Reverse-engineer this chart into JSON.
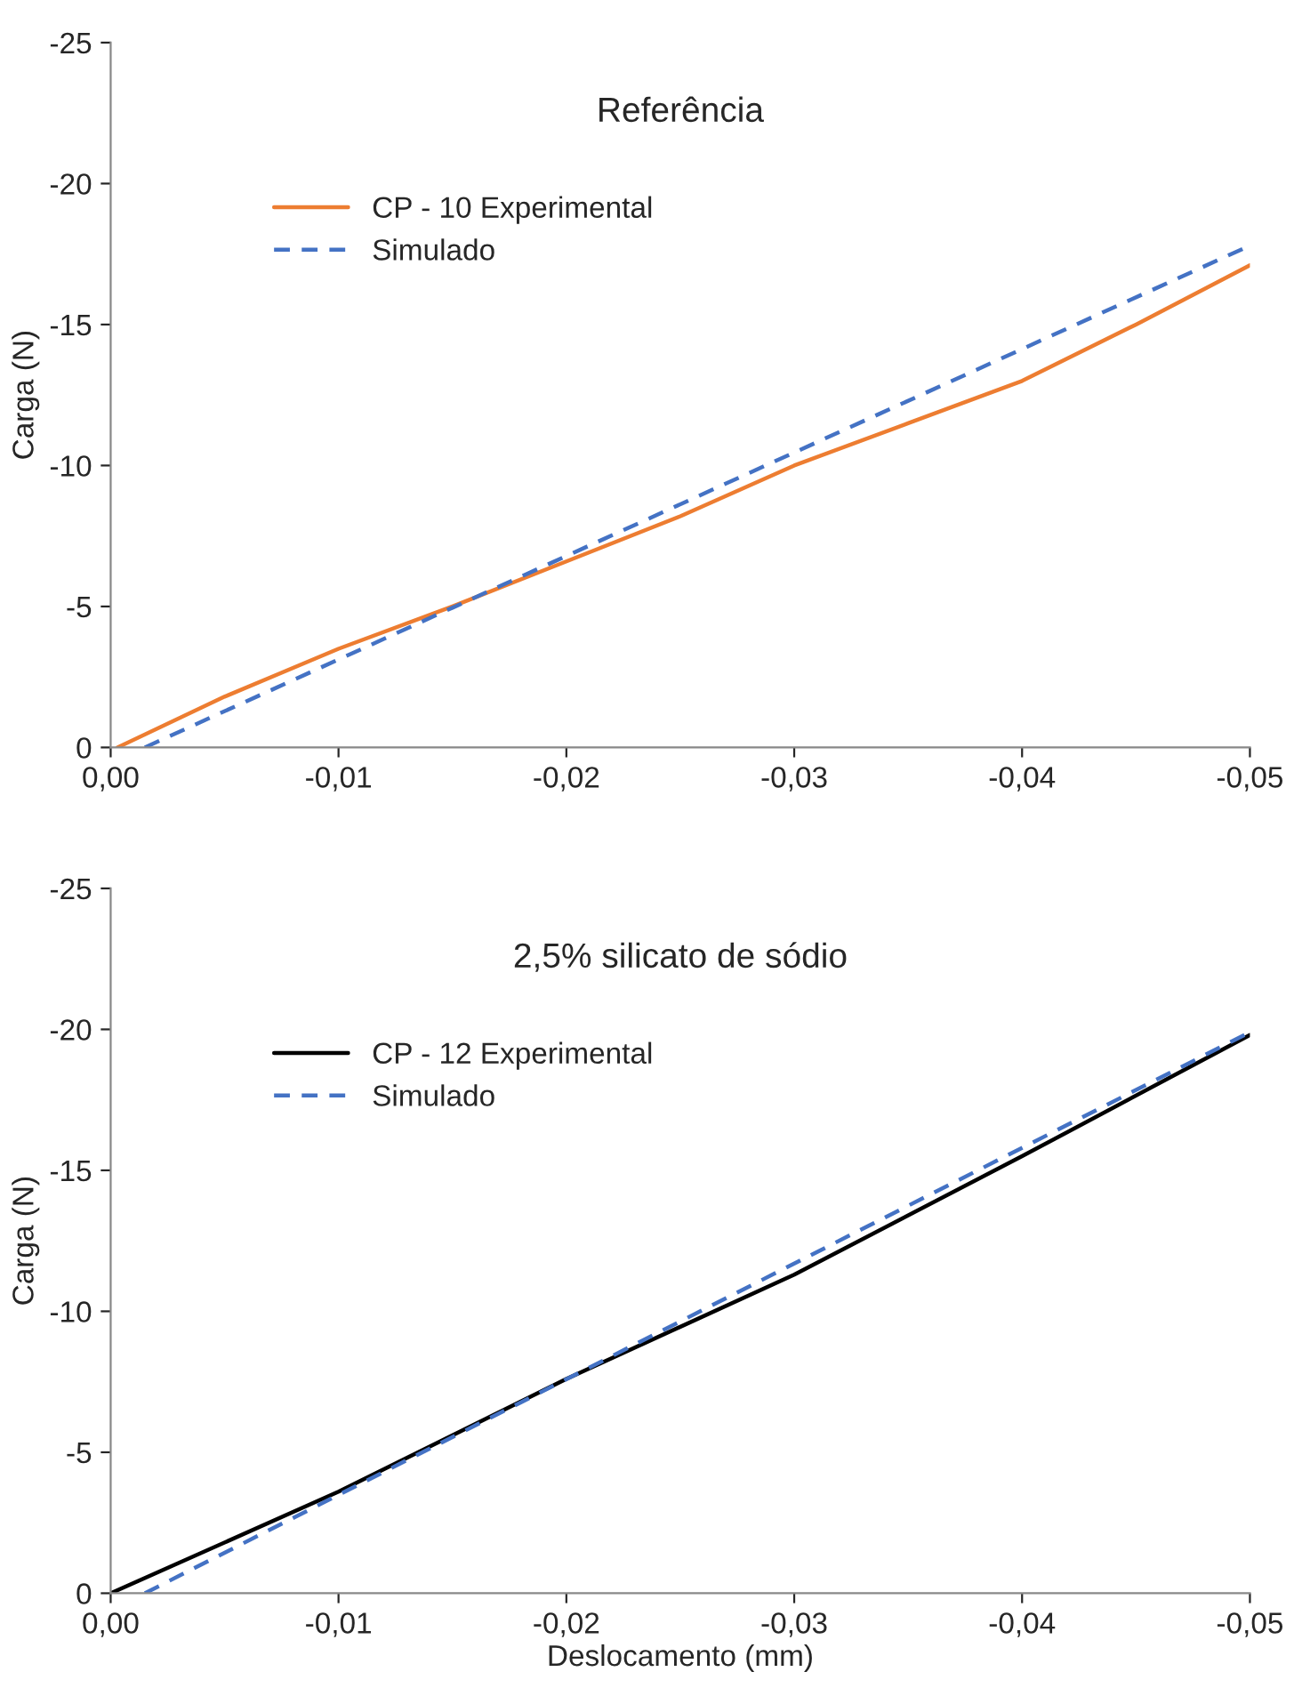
{
  "chart_data": [
    {
      "type": "line",
      "title": "Referência",
      "ylabel": "Carga (N)",
      "xlim": [
        0,
        -0.05
      ],
      "ylim": [
        0,
        -25
      ],
      "xticks": [
        {
          "value": 0,
          "label": "0,00"
        },
        {
          "value": -0.01,
          "label": "-0,01"
        },
        {
          "value": -0.02,
          "label": "-0,02"
        },
        {
          "value": -0.03,
          "label": "-0,03"
        },
        {
          "value": -0.04,
          "label": "-0,04"
        },
        {
          "value": -0.05,
          "label": "-0,05"
        }
      ],
      "yticks": [
        0,
        -5,
        -10,
        -15,
        -20,
        -25
      ],
      "grid": false,
      "legend": "top left",
      "series": [
        {
          "name": "CP - 10 Experimental",
          "color": "#ed7d31",
          "line_style": "solid",
          "x": [
            -0.0003,
            -0.005,
            -0.01,
            -0.015,
            -0.02,
            -0.025,
            -0.03,
            -0.035,
            -0.04,
            -0.045,
            -0.05
          ],
          "values": [
            0,
            -1.8,
            -3.5,
            -5.0,
            -6.6,
            -8.2,
            -10.0,
            -11.5,
            -13.0,
            -15.0,
            -17.1
          ]
        },
        {
          "name": "Simulado",
          "color": "#4472c4",
          "line_style": "dashed",
          "x": [
            -0.0015,
            -0.05
          ],
          "values": [
            0,
            -17.8
          ]
        }
      ]
    },
    {
      "type": "line",
      "title": "2,5% silicato de sódio",
      "xlabel": "Deslocamento (mm)",
      "ylabel": "Carga (N)",
      "xlim": [
        0,
        -0.05
      ],
      "ylim": [
        0,
        -25
      ],
      "xticks": [
        {
          "value": 0,
          "label": "0,00"
        },
        {
          "value": -0.01,
          "label": "-0,01"
        },
        {
          "value": -0.02,
          "label": "-0,02"
        },
        {
          "value": -0.03,
          "label": "-0,03"
        },
        {
          "value": -0.04,
          "label": "-0,04"
        },
        {
          "value": -0.05,
          "label": "-0,05"
        }
      ],
      "yticks": [
        0,
        -5,
        -10,
        -15,
        -20,
        -25
      ],
      "grid": false,
      "legend": "top left",
      "series": [
        {
          "name": "CP - 12 Experimental",
          "color": "#000000",
          "line_style": "solid",
          "x": [
            0,
            -0.01,
            -0.02,
            -0.03,
            -0.04,
            -0.05
          ],
          "values": [
            0,
            -3.6,
            -7.6,
            -11.3,
            -15.5,
            -19.8
          ]
        },
        {
          "name": "Simulado",
          "color": "#4472c4",
          "line_style": "dashed",
          "x": [
            -0.0015,
            -0.05
          ],
          "values": [
            0,
            -19.9
          ]
        }
      ]
    }
  ]
}
